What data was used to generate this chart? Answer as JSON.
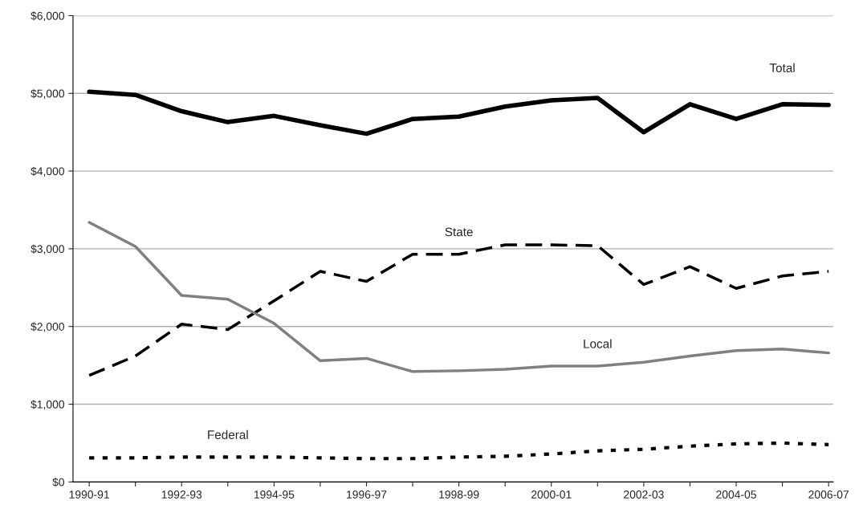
{
  "chart_data": {
    "type": "line",
    "categories": [
      "1990-91",
      null,
      "1992-93",
      null,
      "1994-95",
      null,
      "1996-97",
      null,
      "1998-99",
      null,
      "2000-01",
      null,
      "2002-03",
      null,
      "2004-05",
      null,
      "2006-07"
    ],
    "ylim": [
      0,
      6000
    ],
    "yticks": [
      {
        "value": 0,
        "label": "$0"
      },
      {
        "value": 1000,
        "label": "$1,000"
      },
      {
        "value": 2000,
        "label": "$2,000"
      },
      {
        "value": 3000,
        "label": "$3,000"
      },
      {
        "value": 4000,
        "label": "$4,000"
      },
      {
        "value": 5000,
        "label": "$5,000"
      },
      {
        "value": 6000,
        "label": "$6,000"
      }
    ],
    "grid": "y",
    "legend": false,
    "marker": "none",
    "series": [
      {
        "name": "Total",
        "color": "#000000",
        "line_style": "solid",
        "values": [
          5020,
          4980,
          4770,
          4630,
          4710,
          4590,
          4480,
          4670,
          4700,
          4830,
          4910,
          4940,
          4500,
          4860,
          4670,
          4860,
          4850
        ]
      },
      {
        "name": "State",
        "color": "#000000",
        "line_style": "dashed",
        "values": [
          1370,
          1620,
          2030,
          1960,
          2330,
          2710,
          2580,
          2930,
          2930,
          3050,
          3050,
          3040,
          2540,
          2770,
          2490,
          2650,
          2710
        ]
      },
      {
        "name": "Local",
        "color": "#808080",
        "line_style": "solid",
        "values": [
          3340,
          3030,
          2400,
          2350,
          2040,
          1560,
          1590,
          1420,
          1430,
          1450,
          1490,
          1490,
          1540,
          1620,
          1690,
          1710,
          1660
        ]
      },
      {
        "name": "Federal",
        "color": "#000000",
        "line_style": "dotted",
        "values": [
          310,
          310,
          320,
          320,
          320,
          310,
          300,
          300,
          320,
          330,
          360,
          400,
          420,
          460,
          490,
          500,
          480
        ]
      }
    ]
  }
}
